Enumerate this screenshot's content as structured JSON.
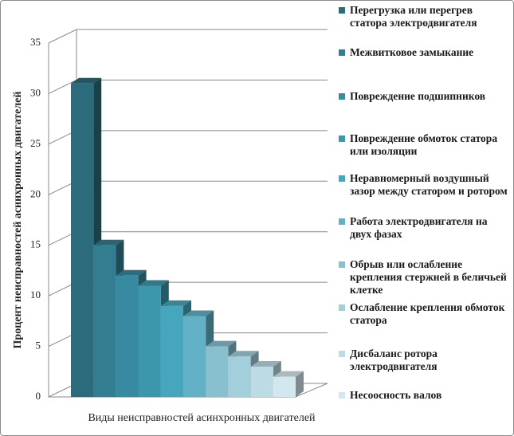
{
  "chart_data": {
    "type": "bar3d",
    "y_label": "Процент неисправностей асинхронных двигателей",
    "x_label": "Виды неисправностей асинхронных двигателей",
    "ylim": [
      0,
      35
    ],
    "yticks": [
      0,
      5,
      10,
      15,
      20,
      25,
      30,
      35
    ],
    "grid": true,
    "series": [
      {
        "name": "Перегрузка или перегрев статора электродвигателя",
        "color": "#2c6b7c",
        "values": [
          31
        ]
      },
      {
        "name": "Межвитковое замыкание",
        "color": "#327d90",
        "values": [
          15
        ]
      },
      {
        "name": "Повреждение подшипников",
        "color": "#378aa0",
        "values": [
          12
        ]
      },
      {
        "name": "Повреждение обмоток статора или изоляции",
        "color": "#3c97ad",
        "values": [
          11
        ]
      },
      {
        "name": "Неравномерный воздушный зазор между статором и ротором",
        "color": "#45a6bd",
        "values": [
          9
        ]
      },
      {
        "name": "Работа электродвигателя на двух фазах",
        "color": "#62b1c6",
        "values": [
          8
        ]
      },
      {
        "name": "Обрыв или ослабление крепления стержней в беличьей клетке",
        "color": "#88c0d0",
        "values": [
          5
        ]
      },
      {
        "name": "Ослабление крепления обмоток статора",
        "color": "#a3cedb",
        "values": [
          4
        ]
      },
      {
        "name": "Дисбаланс ротора электродвигателя",
        "color": "#bcdbe5",
        "values": [
          3
        ]
      },
      {
        "name": "Несоосность валов",
        "color": "#d3e7ee",
        "values": [
          2
        ]
      }
    ]
  }
}
